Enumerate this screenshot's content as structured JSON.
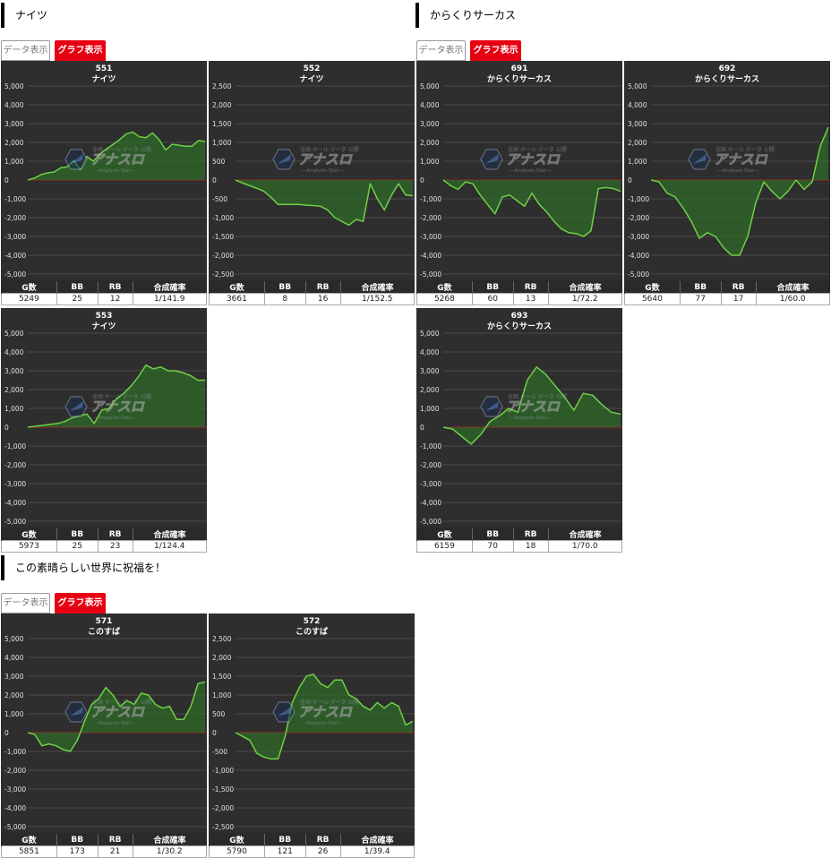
{
  "sections": [
    {
      "title": "ナイツ",
      "data_label": "データ表示",
      "graph_label": "グラフ表示"
    },
    {
      "title": "からくりサーカス",
      "data_label": "データ表示",
      "graph_label": "グラフ表示"
    },
    {
      "title": "この素晴らしい世界に祝福を！",
      "data_label": "データ表示",
      "graph_label": "グラフ表示"
    }
  ],
  "table_headers": {
    "g": "G数",
    "bb": "BB",
    "rb": "RB",
    "rate": "合成確率"
  },
  "colors": {
    "chart_bg": "#2e2e2e",
    "line": "#6ed045",
    "fill": "#2f6a2a",
    "zero_line": "#b02020",
    "grid": "#4a4a4a",
    "accent": "#e60012"
  },
  "watermark": {
    "icon": "hexagon-logo-icon",
    "main": "アナスロ",
    "top": "全国 ホール データ 公開",
    "bottom": "―Analysis Slot―"
  },
  "chart_data": [
    {
      "id": "c551",
      "type": "area",
      "title": "551",
      "subtitle": "ナイツ",
      "ylim": [
        -5000,
        5000
      ],
      "yticks": [
        -5000,
        -4000,
        -3000,
        -2000,
        -1000,
        0,
        1000,
        2000,
        3000,
        4000,
        5000
      ],
      "values": [
        0,
        100,
        280,
        380,
        420,
        650,
        700,
        1050,
        550,
        1250,
        1000,
        1400,
        1650,
        1900,
        2150,
        2450,
        2550,
        2300,
        2250,
        2500,
        2150,
        1600,
        1900,
        1850,
        1800,
        1800,
        2100,
        2050
      ],
      "stats": {
        "g": "5249",
        "bb": "25",
        "rb": "12",
        "rate": "1/141.9"
      }
    },
    {
      "id": "c552",
      "type": "area",
      "title": "552",
      "subtitle": "ナイツ",
      "ylim": [
        -2500,
        2500
      ],
      "yticks": [
        -2500,
        -2000,
        -1500,
        -1000,
        -500,
        0,
        500,
        1000,
        1500,
        2000,
        2500
      ],
      "values": [
        0,
        -80,
        -150,
        -220,
        -300,
        -460,
        -650,
        -650,
        -650,
        -650,
        -670,
        -680,
        -700,
        -800,
        -1000,
        -1100,
        -1200,
        -1050,
        -1100,
        -100,
        -500,
        -800,
        -400,
        -100,
        -400,
        -420
      ],
      "stats": {
        "g": "3661",
        "bb": "8",
        "rb": "16",
        "rate": "1/152.5"
      }
    },
    {
      "id": "c691",
      "type": "area",
      "title": "691",
      "subtitle": "からくりサーカス",
      "ylim": [
        -5000,
        5000
      ],
      "yticks": [
        -5000,
        -4000,
        -3000,
        -2000,
        -1000,
        0,
        1000,
        2000,
        3000,
        4000,
        5000
      ],
      "values": [
        0,
        -300,
        -500,
        -100,
        -200,
        -800,
        -1300,
        -1800,
        -900,
        -800,
        -1100,
        -1400,
        -700,
        -1300,
        -1700,
        -2200,
        -2600,
        -2800,
        -2850,
        -3000,
        -2700,
        -450,
        -400,
        -450,
        -600
      ],
      "stats": {
        "g": "5268",
        "bb": "60",
        "rb": "13",
        "rate": "1/72.2"
      }
    },
    {
      "id": "c692",
      "type": "area",
      "title": "692",
      "subtitle": "からくりサーカス",
      "ylim": [
        -5000,
        5000
      ],
      "yticks": [
        -5000,
        -4000,
        -3000,
        -2000,
        -1000,
        0,
        1000,
        2000,
        3000,
        4000,
        5000
      ],
      "values": [
        0,
        -100,
        -700,
        -900,
        -1500,
        -2200,
        -3100,
        -2800,
        -3000,
        -3600,
        -4000,
        -4000,
        -3000,
        -1200,
        -100,
        -600,
        -1000,
        -600,
        0,
        -500,
        -100,
        1800,
        2800
      ],
      "stats": {
        "g": "5640",
        "bb": "77",
        "rb": "17",
        "rate": "1/60.0"
      }
    },
    {
      "id": "c553",
      "type": "area",
      "title": "553",
      "subtitle": "ナイツ",
      "ylim": [
        -5000,
        5000
      ],
      "yticks": [
        -5000,
        -4000,
        -3000,
        -2000,
        -1000,
        0,
        1000,
        2000,
        3000,
        4000,
        5000
      ],
      "values": [
        0,
        50,
        100,
        150,
        200,
        300,
        500,
        600,
        700,
        200,
        900,
        1000,
        1500,
        1800,
        2200,
        2700,
        3300,
        3100,
        3200,
        3000,
        3000,
        2900,
        2750,
        2500,
        2500
      ],
      "stats": {
        "g": "5973",
        "bb": "25",
        "rb": "23",
        "rate": "1/124.4"
      }
    },
    {
      "id": "c693",
      "type": "area",
      "title": "693",
      "subtitle": "からくりサーカス",
      "ylim": [
        -5000,
        5000
      ],
      "yticks": [
        -5000,
        -4000,
        -3000,
        -2000,
        -1000,
        0,
        1000,
        2000,
        3000,
        4000,
        5000
      ],
      "values": [
        0,
        -100,
        -500,
        -900,
        -400,
        300,
        600,
        1000,
        800,
        2500,
        3200,
        2800,
        2200,
        1600,
        900,
        1800,
        1700,
        1200,
        800,
        700
      ],
      "stats": {
        "g": "6159",
        "bb": "70",
        "rb": "18",
        "rate": "1/70.0"
      }
    },
    {
      "id": "c571",
      "type": "area",
      "title": "571",
      "subtitle": "このすば",
      "ylim": [
        -5000,
        5000
      ],
      "yticks": [
        -5000,
        -4000,
        -3000,
        -2000,
        -1000,
        0,
        1000,
        2000,
        3000,
        4000,
        5000
      ],
      "values": [
        0,
        -100,
        -700,
        -600,
        -700,
        -900,
        -1000,
        -400,
        600,
        1500,
        1800,
        2400,
        2000,
        1400,
        1700,
        1500,
        2100,
        2000,
        1500,
        1300,
        1400,
        700,
        700,
        1400,
        2600,
        2700
      ],
      "stats": {
        "g": "5851",
        "bb": "173",
        "rb": "21",
        "rate": "1/30.2"
      }
    },
    {
      "id": "c572",
      "type": "area",
      "title": "572",
      "subtitle": "このすば",
      "ylim": [
        -2500,
        2500
      ],
      "yticks": [
        -2500,
        -2000,
        -1500,
        -1000,
        -500,
        0,
        500,
        1000,
        1500,
        2000,
        2500
      ],
      "values": [
        0,
        -100,
        -200,
        -550,
        -650,
        -700,
        -700,
        -100,
        800,
        1200,
        1500,
        1550,
        1300,
        1200,
        1400,
        1400,
        1000,
        900,
        700,
        600,
        800,
        650,
        800,
        700,
        200,
        300
      ],
      "stats": {
        "g": "5790",
        "bb": "121",
        "rb": "26",
        "rate": "1/39.4"
      }
    }
  ]
}
